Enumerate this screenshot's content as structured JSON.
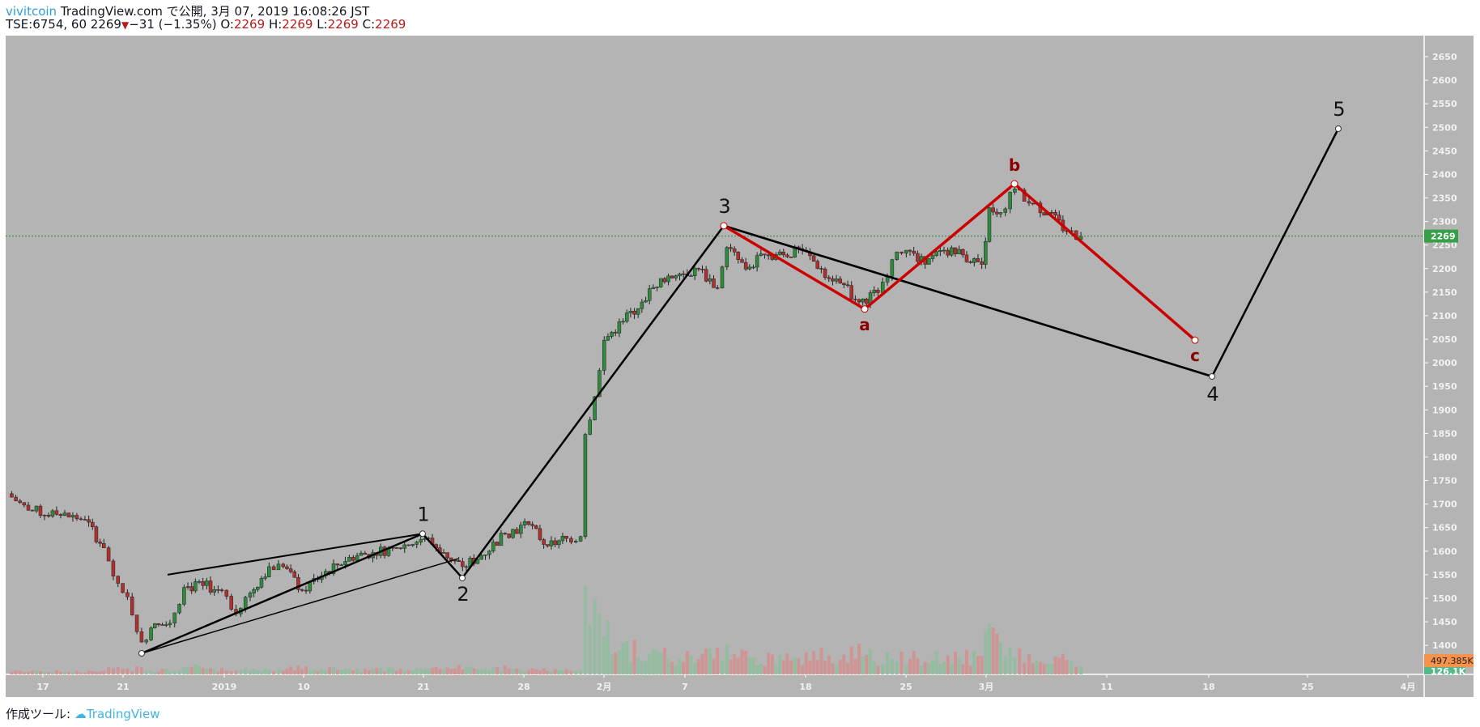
{
  "header": {
    "author": "vivitcoin",
    "published": "TradingView.com で公開, 3月 07, 2019 16:08:26 JST",
    "symbol": "TSE:6754, 60",
    "last": "2269",
    "change": "−31 (−1.35%)",
    "o_label": "O:",
    "o": "2269",
    "h_label": "H:",
    "h": "2269",
    "l_label": "L:",
    "l": "2269",
    "c_label": "C:",
    "c": "2269"
  },
  "footer": {
    "label": "作成ツール:",
    "brand": "TradingView"
  },
  "colors": {
    "background": "#b4b4b4",
    "up": "#2e8b3e",
    "down": "#b03030",
    "wave": "#000000",
    "correction": "#cc0000",
    "correction_label": "#8b0000",
    "last_price": "#35a048",
    "volume_label": "#f7924a"
  },
  "chart_data": {
    "type": "candlestick",
    "symbol": "TSE:6754",
    "interval": "60",
    "ylim": [
      1350,
      2700
    ],
    "price_ticks": [
      "2650",
      "2600",
      "2550",
      "2500",
      "2450",
      "2400",
      "2350",
      "2300",
      "2250",
      "2200",
      "2150",
      "2100",
      "2050",
      "2000",
      "1950",
      "1900",
      "1850",
      "1800",
      "1750",
      "1700",
      "1650",
      "1600",
      "1550",
      "1500",
      "1450",
      "1400"
    ],
    "time_ticks": [
      "17",
      "21",
      "2019",
      "10",
      "21",
      "28",
      "2月",
      "7",
      "18",
      "25",
      "3月",
      "11",
      "18",
      "25",
      "4月"
    ],
    "last_price": "2269",
    "volume_last": "497.385K",
    "volume_ma": "126.1K",
    "closes": [
      1722,
      1687,
      1678,
      1667,
      1607,
      1547,
      1503,
      1407,
      1437,
      1447,
      1523,
      1527,
      1517,
      1467,
      1511,
      1567,
      1567,
      1517,
      1557,
      1587,
      1597,
      1607,
      1627,
      1597,
      1567,
      1591,
      1637,
      1657,
      1611,
      1627,
      1631,
      1848,
      1928,
      2048,
      2088,
      2129,
      2179,
      2189,
      2199,
      2159,
      2245,
      2199,
      2229,
      2229,
      2239,
      2199,
      2169,
      2129,
      2149,
      2219,
      2239,
      2209,
      2239,
      2229,
      2209,
      2329,
      2319,
      2369,
      2339,
      2319,
      2279,
      2269
    ],
    "volumes_k": [
      120,
      90,
      110,
      80,
      150,
      200,
      160,
      260,
      180,
      140,
      300,
      220,
      160,
      250,
      190,
      200,
      170,
      230,
      180,
      210,
      150,
      190,
      260,
      200,
      240,
      180,
      220,
      160,
      150,
      120,
      200,
      3800,
      2500,
      1500,
      900,
      800,
      700,
      650,
      600,
      700,
      900,
      650,
      600,
      700,
      550,
      650,
      700,
      800,
      600,
      750,
      650,
      600,
      650,
      600,
      700,
      1800,
      900,
      700,
      600,
      550,
      500,
      497
    ],
    "elliott_wave": [
      {
        "label": "",
        "price": 1383
      },
      {
        "label": "1",
        "price": 1637
      },
      {
        "label": "2",
        "price": 1543
      },
      {
        "label": "3",
        "price": 2291
      },
      {
        "label": "4",
        "price": 1971
      },
      {
        "label": "5",
        "price": 2497
      }
    ],
    "correction_wave": [
      {
        "label": "",
        "price": 2291
      },
      {
        "label": "a",
        "price": 2114
      },
      {
        "label": "b",
        "price": 2380
      },
      {
        "label": "c",
        "price": 2048
      }
    ],
    "wedge": {
      "upper_start": 1550,
      "upper_end": 1637,
      "lower_start": 1383,
      "lower_end": 1584
    }
  }
}
